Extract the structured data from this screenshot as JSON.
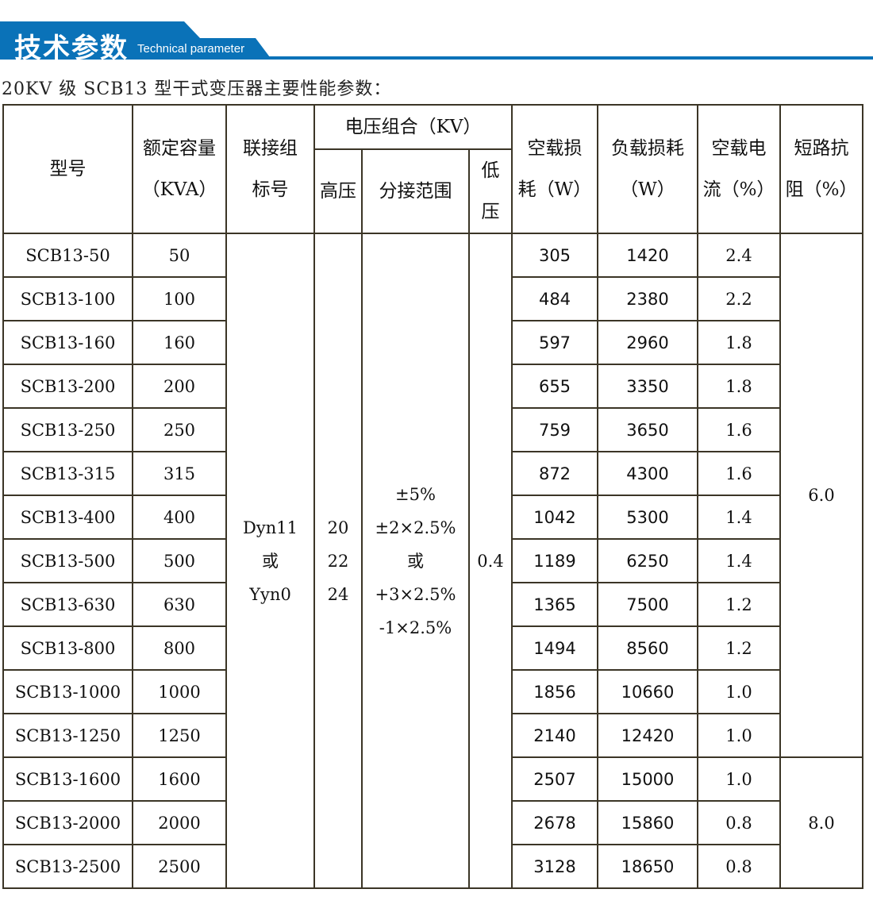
{
  "banner": {
    "title": "技术参数",
    "subtitle": "Technical parameter",
    "color": "#0a72b8"
  },
  "caption": "20KV 级 SCB13 型干式变压器主要性能参数：",
  "headers": {
    "model": "型号",
    "capacity": [
      "额定容量",
      "（KVA）"
    ],
    "connection": [
      "联接组",
      "标号"
    ],
    "voltage_group": "电压组合（KV）",
    "hv": "高压",
    "tap": "分接范围",
    "lv": [
      "低",
      "压"
    ],
    "no_load_loss": [
      "空载损",
      "耗（W）"
    ],
    "load_loss": [
      "负载损耗",
      "（W）"
    ],
    "no_load_current": [
      "空载电",
      "流（%）"
    ],
    "impedance": [
      "短路抗",
      "阻（%）"
    ]
  },
  "merged": {
    "connection": [
      "Dyn11",
      "或",
      "Yyn0"
    ],
    "hv": [
      "20",
      "22",
      "24"
    ],
    "tap": [
      "±5%",
      "±2×2.5%",
      "或",
      "+3×2.5%",
      "-1×2.5%"
    ],
    "lv": "0.4",
    "impedance": [
      "6.0",
      "8.0"
    ]
  },
  "rows": [
    {
      "model": "SCB13-50",
      "cap": "50",
      "nll": "305",
      "ll": "1420",
      "nlc": "2.4"
    },
    {
      "model": "SCB13-100",
      "cap": "100",
      "nll": "484",
      "ll": "2380",
      "nlc": "2.2"
    },
    {
      "model": "SCB13-160",
      "cap": "160",
      "nll": "597",
      "ll": "2960",
      "nlc": "1.8"
    },
    {
      "model": "SCB13-200",
      "cap": "200",
      "nll": "655",
      "ll": "3350",
      "nlc": "1.8"
    },
    {
      "model": "SCB13-250",
      "cap": "250",
      "nll": "759",
      "ll": "3650",
      "nlc": "1.6"
    },
    {
      "model": "SCB13-315",
      "cap": "315",
      "nll": "872",
      "ll": "4300",
      "nlc": "1.6"
    },
    {
      "model": "SCB13-400",
      "cap": "400",
      "nll": "1042",
      "ll": "5300",
      "nlc": "1.4"
    },
    {
      "model": "SCB13-500",
      "cap": "500",
      "nll": "1189",
      "ll": "6250",
      "nlc": "1.4"
    },
    {
      "model": "SCB13-630",
      "cap": "630",
      "nll": "1365",
      "ll": "7500",
      "nlc": "1.2"
    },
    {
      "model": "SCB13-800",
      "cap": "800",
      "nll": "1494",
      "ll": "8560",
      "nlc": "1.2"
    },
    {
      "model": "SCB13-1000",
      "cap": "1000",
      "nll": "1856",
      "ll": "10660",
      "nlc": "1.0"
    },
    {
      "model": "SCB13-1250",
      "cap": "1250",
      "nll": "2140",
      "ll": "12420",
      "nlc": "1.0"
    },
    {
      "model": "SCB13-1600",
      "cap": "1600",
      "nll": "2507",
      "ll": "15000",
      "nlc": "1.0"
    },
    {
      "model": "SCB13-2000",
      "cap": "2000",
      "nll": "2678",
      "ll": "15860",
      "nlc": "0.8"
    },
    {
      "model": "SCB13-2500",
      "cap": "2500",
      "nll": "3128",
      "ll": "18650",
      "nlc": "0.8"
    }
  ]
}
